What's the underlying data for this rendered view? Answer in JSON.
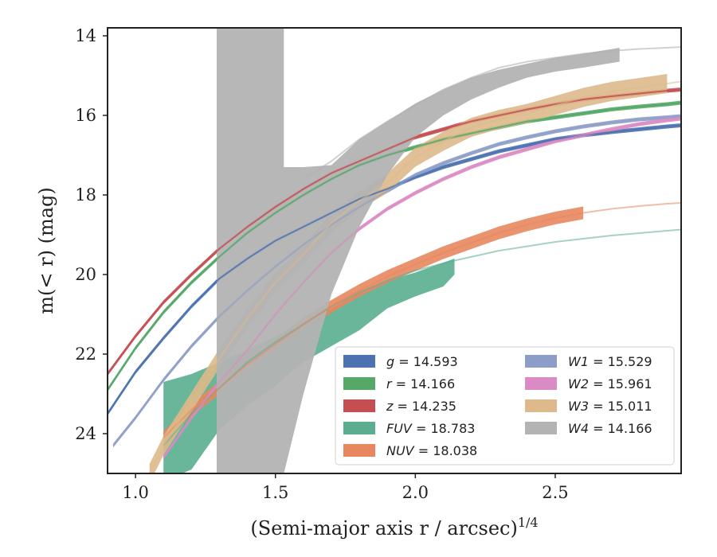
{
  "chart_data": {
    "type": "line",
    "xlabel": "(Semi-major axis r / arcsec)",
    "xlabel_sup": "1/4",
    "ylabel": "m(< r) (mag)",
    "xlim": [
      0.9,
      2.95
    ],
    "ylim": [
      25.0,
      13.8
    ],
    "y_inverted": true,
    "xticks": [
      1.0,
      1.5,
      2.0,
      2.5
    ],
    "xtick_labels": [
      "1.0",
      "1.5",
      "2.0",
      "2.5"
    ],
    "yticks": [
      14,
      16,
      18,
      20,
      22,
      24
    ],
    "ytick_labels": [
      "14",
      "16",
      "18",
      "20",
      "22",
      "24"
    ],
    "grid": false,
    "legend_position": "lower-right",
    "series": [
      {
        "name": "g = 14.593",
        "color": "#4c72b0",
        "alpha_line": 0.85,
        "band_width": 0.05,
        "band_xmax": 2.95,
        "x": [
          0.9,
          1.0,
          1.1,
          1.2,
          1.3,
          1.4,
          1.5,
          1.6,
          1.7,
          1.8,
          1.9,
          2.0,
          2.1,
          2.2,
          2.3,
          2.4,
          2.5,
          2.6,
          2.7,
          2.8,
          2.9,
          2.95
        ],
        "y": [
          23.5,
          22.45,
          21.6,
          20.8,
          20.1,
          19.6,
          19.15,
          18.8,
          18.45,
          18.1,
          17.85,
          17.55,
          17.3,
          17.1,
          16.9,
          16.75,
          16.6,
          16.5,
          16.42,
          16.35,
          16.28,
          16.25
        ]
      },
      {
        "name": "r = 14.166",
        "color": "#55a868",
        "alpha_line": 0.85,
        "band_width": 0.05,
        "band_xmax": 2.95,
        "x": [
          0.9,
          1.0,
          1.1,
          1.2,
          1.3,
          1.4,
          1.5,
          1.6,
          1.7,
          1.8,
          1.9,
          2.0,
          2.1,
          2.2,
          2.3,
          2.4,
          2.5,
          2.6,
          2.7,
          2.8,
          2.9,
          2.95
        ],
        "y": [
          22.9,
          21.85,
          20.95,
          20.2,
          19.55,
          18.95,
          18.45,
          18.0,
          17.6,
          17.25,
          17.0,
          16.8,
          16.6,
          16.45,
          16.3,
          16.15,
          16.05,
          15.95,
          15.85,
          15.78,
          15.72,
          15.68
        ]
      },
      {
        "name": "z = 14.235",
        "color": "#c44e52",
        "alpha_line": 0.85,
        "band_width": 0.05,
        "band_xmax": 2.95,
        "x": [
          0.9,
          1.0,
          1.1,
          1.2,
          1.3,
          1.4,
          1.5,
          1.6,
          1.7,
          1.8,
          1.9,
          2.0,
          2.1,
          2.2,
          2.3,
          2.4,
          2.5,
          2.6,
          2.7,
          2.8,
          2.9,
          2.95
        ],
        "y": [
          22.5,
          21.55,
          20.7,
          20.0,
          19.35,
          18.8,
          18.3,
          17.85,
          17.45,
          17.15,
          16.85,
          16.55,
          16.35,
          16.15,
          16.0,
          15.85,
          15.72,
          15.6,
          15.52,
          15.45,
          15.38,
          15.35
        ]
      },
      {
        "name": "FUV = 18.783",
        "color": "#5aae8f",
        "alpha_line": 0.55,
        "band_width": 0.0,
        "band_xmax": 2.14,
        "x": [
          1.1,
          1.2,
          1.3,
          1.4,
          1.5,
          1.6,
          1.7,
          1.8,
          1.9,
          2.0,
          2.1,
          2.14,
          2.3,
          2.5,
          2.7,
          2.9,
          2.95
        ],
        "y": [
          24.3,
          23.5,
          22.85,
          22.2,
          21.7,
          21.25,
          20.8,
          20.45,
          20.15,
          19.9,
          19.72,
          19.65,
          19.4,
          19.18,
          19.02,
          18.9,
          18.87
        ],
        "band_x": [
          1.1,
          1.2,
          1.3,
          1.4,
          1.5,
          1.53,
          1.6,
          1.7,
          1.8,
          1.9,
          2.0,
          2.1,
          2.14
        ],
        "band_lo": [
          22.7,
          22.5,
          22.2,
          21.9,
          21.55,
          21.45,
          21.2,
          20.85,
          20.45,
          20.15,
          19.95,
          19.7,
          19.6
        ],
        "band_hi": [
          25.2,
          24.9,
          23.9,
          23.3,
          22.8,
          22.6,
          22.2,
          21.8,
          21.4,
          20.85,
          20.55,
          20.3,
          20.0
        ]
      },
      {
        "name": "NUV = 18.038",
        "color": "#e8875f",
        "alpha_line": 0.55,
        "band_width": 0.16,
        "band_xmax": 2.64,
        "x": [
          1.1,
          1.2,
          1.3,
          1.4,
          1.5,
          1.6,
          1.7,
          1.8,
          1.9,
          2.0,
          2.1,
          2.2,
          2.3,
          2.4,
          2.5,
          2.6,
          2.7,
          2.8,
          2.9,
          2.95
        ],
        "y": [
          24.1,
          23.4,
          22.85,
          22.25,
          21.75,
          21.25,
          20.8,
          20.4,
          20.05,
          19.75,
          19.45,
          19.2,
          18.95,
          18.75,
          18.58,
          18.45,
          18.35,
          18.28,
          18.22,
          18.2
        ]
      },
      {
        "name": "W1 = 15.529",
        "color": "#8c9dc8",
        "alpha_line": 0.6,
        "band_width": 0.05,
        "band_xmax": 2.95,
        "x": [
          0.92,
          1.0,
          1.1,
          1.2,
          1.3,
          1.4,
          1.5,
          1.6,
          1.7,
          1.8,
          1.9,
          2.0,
          2.1,
          2.2,
          2.3,
          2.4,
          2.5,
          2.6,
          2.7,
          2.8,
          2.9,
          2.95
        ],
        "y": [
          24.3,
          23.6,
          22.65,
          21.8,
          21.05,
          20.4,
          19.8,
          19.25,
          18.75,
          18.3,
          17.9,
          17.5,
          17.2,
          16.95,
          16.72,
          16.55,
          16.4,
          16.28,
          16.18,
          16.1,
          16.05,
          16.02
        ]
      },
      {
        "name": "W2 = 15.961",
        "color": "#da8bc3",
        "alpha_line": 0.6,
        "band_width": 0.05,
        "band_xmax": 2.95,
        "x": [
          1.1,
          1.2,
          1.3,
          1.4,
          1.5,
          1.6,
          1.7,
          1.8,
          1.9,
          2.0,
          2.1,
          2.2,
          2.3,
          2.4,
          2.5,
          2.6,
          2.7,
          2.8,
          2.9,
          2.95
        ],
        "y": [
          24.6,
          23.6,
          22.7,
          21.9,
          21.0,
          20.2,
          19.45,
          18.85,
          18.35,
          17.95,
          17.6,
          17.3,
          17.05,
          16.85,
          16.65,
          16.5,
          16.35,
          16.22,
          16.12,
          16.08
        ]
      },
      {
        "name": "W3 = 15.011",
        "color": "#ddb98b",
        "alpha_line": 0.55,
        "band_width": 0.24,
        "band_xmax": 2.9,
        "x": [
          1.05,
          1.1,
          1.2,
          1.3,
          1.4,
          1.5,
          1.6,
          1.7,
          1.8,
          1.9,
          2.0,
          2.1,
          2.2,
          2.3,
          2.4,
          2.5,
          2.6,
          2.7,
          2.8,
          2.9,
          2.95
        ],
        "y": [
          25.0,
          24.3,
          23.2,
          22.1,
          21.1,
          20.2,
          19.5,
          18.7,
          18.15,
          17.7,
          17.05,
          16.65,
          16.3,
          16.1,
          15.95,
          15.75,
          15.55,
          15.4,
          15.3,
          15.2,
          15.15
        ]
      },
      {
        "name": "W4 = 14.166",
        "color": "#b3b3b3",
        "alpha_line": 0.6,
        "band_width": 0.0,
        "band_xmax": 2.73,
        "x": [
          1.6,
          1.7,
          1.8,
          1.9,
          2.0,
          2.1,
          2.2,
          2.3,
          2.4,
          2.5,
          2.6,
          2.7,
          2.8,
          2.9,
          2.95
        ],
        "y": [
          17.6,
          17.15,
          16.6,
          16.15,
          15.75,
          15.35,
          15.05,
          14.8,
          14.65,
          14.55,
          14.45,
          14.38,
          14.33,
          14.3,
          14.28
        ],
        "band_x": [
          1.29,
          1.29,
          1.5,
          1.53,
          1.53,
          1.6,
          1.7,
          1.8,
          1.9,
          2.0,
          2.1,
          2.2,
          2.3,
          2.4,
          2.5,
          2.6,
          2.73
        ],
        "band_lo": [
          13.8,
          13.8,
          13.8,
          13.8,
          17.3,
          17.3,
          17.25,
          16.6,
          16.15,
          15.7,
          15.35,
          15.05,
          14.85,
          14.7,
          14.55,
          14.45,
          14.3
        ],
        "band_hi": [
          25.0,
          25.0,
          25.0,
          25.0,
          25.0,
          23.0,
          20.5,
          18.8,
          17.5,
          16.55,
          16.0,
          15.6,
          15.3,
          15.05,
          14.9,
          14.8,
          14.65
        ]
      }
    ]
  }
}
